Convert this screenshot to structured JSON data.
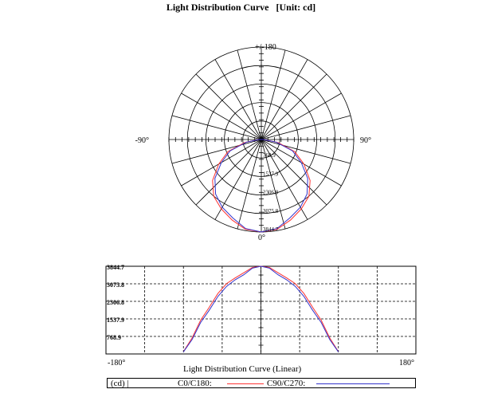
{
  "title": "Light Distribution Curve   [Unit: cd]",
  "polar": {
    "top_label": "+/-180",
    "left_label": "-90°",
    "right_label": "90°",
    "bottom_label": "0°",
    "ring_labels": [
      "768.9",
      "1537.9",
      "2306.8",
      "3075.8",
      "3844.7"
    ]
  },
  "linear": {
    "caption": "Light Distribution Curve (Linear)",
    "x_left_label": "-180°",
    "x_right_label": "180°",
    "y_tick_labels": [
      "3844.7",
      "3075.8",
      "2306.8",
      "1537.9",
      "768.9"
    ]
  },
  "legend": {
    "unit": "(cd) |",
    "series1": "C0/C180:",
    "series2": "C90/C270:"
  },
  "colors": {
    "c0": "#ff3333",
    "c90": "#3333cc"
  },
  "chart_data": {
    "type": "polar-and-line",
    "unit": "cd",
    "max": 3844.7,
    "angles_deg": [
      0,
      10,
      20,
      30,
      40,
      50,
      60,
      70,
      80,
      90
    ],
    "series": [
      {
        "name": "C0/C180",
        "values": [
          3844.7,
          3790,
          3560,
          3330,
          3080,
          2650,
          2050,
          1480,
          700,
          100
        ]
      },
      {
        "name": "C90/C270",
        "values": [
          3844.7,
          3760,
          3470,
          3250,
          2960,
          2520,
          1920,
          1380,
          630,
          90
        ]
      }
    ]
  }
}
